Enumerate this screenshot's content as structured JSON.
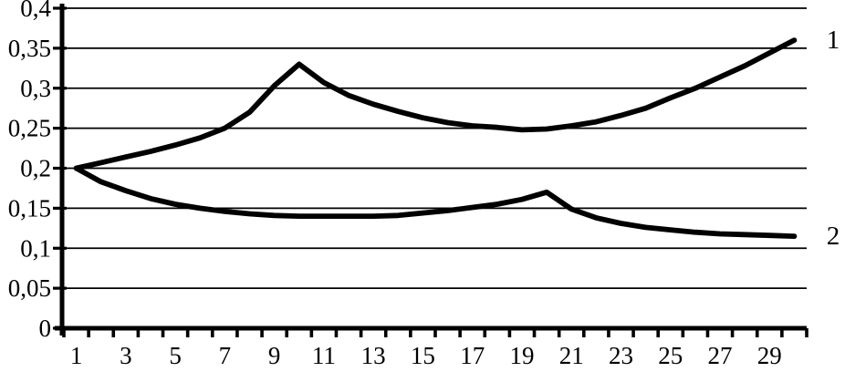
{
  "chart_data": {
    "type": "line",
    "title": "",
    "xlabel": "",
    "ylabel": "",
    "background_color": "#ffffff",
    "line_color": "#000000",
    "grid": "horizontal",
    "legend_position": "right-end-of-line",
    "ylim": [
      0,
      0.4
    ],
    "y_step": 0.05,
    "y_tick_labels": [
      "0",
      "0,05",
      "0,1",
      "0,15",
      "0,2",
      "0,25",
      "0,3",
      "0,35",
      "0,4"
    ],
    "x_categories_count": 30,
    "x": [
      1,
      2,
      3,
      4,
      5,
      6,
      7,
      8,
      9,
      10,
      11,
      12,
      13,
      14,
      15,
      16,
      17,
      18,
      19,
      20,
      21,
      22,
      23,
      24,
      25,
      26,
      27,
      28,
      29,
      30
    ],
    "x_tick_labels": [
      "1",
      "3",
      "5",
      "7",
      "9",
      "11",
      "13",
      "15",
      "17",
      "19",
      "21",
      "23",
      "25",
      "27",
      "29"
    ],
    "series": [
      {
        "name": "1",
        "values": [
          0.2,
          0.207,
          0.214,
          0.221,
          0.229,
          0.238,
          0.25,
          0.27,
          0.303,
          0.33,
          0.307,
          0.291,
          0.28,
          0.271,
          0.263,
          0.257,
          0.253,
          0.251,
          0.248,
          0.249,
          0.253,
          0.258,
          0.266,
          0.275,
          0.288,
          0.3,
          0.314,
          0.328,
          0.344,
          0.36
        ]
      },
      {
        "name": "2",
        "values": [
          0.2,
          0.183,
          0.172,
          0.162,
          0.155,
          0.15,
          0.146,
          0.143,
          0.141,
          0.14,
          0.14,
          0.14,
          0.14,
          0.141,
          0.144,
          0.147,
          0.151,
          0.155,
          0.161,
          0.17,
          0.149,
          0.138,
          0.131,
          0.126,
          0.123,
          0.12,
          0.118,
          0.117,
          0.116,
          0.115
        ]
      }
    ]
  }
}
